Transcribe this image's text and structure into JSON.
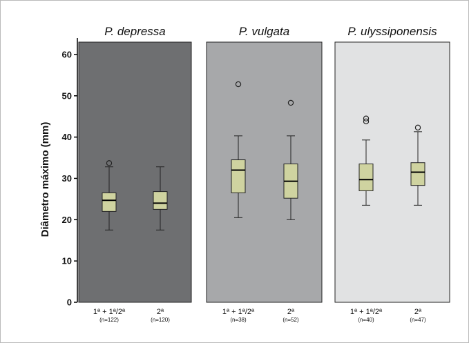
{
  "colors": {
    "box_fill": "#cfd3a0",
    "panel_backgrounds": [
      "#6e6f71",
      "#a7a8aa",
      "#e1e2e3"
    ]
  },
  "chart_data": {
    "type": "box",
    "ylabel": "Diâmetro máximo (mm)",
    "ylim": [
      0,
      63
    ],
    "yticks": [
      0,
      10,
      20,
      30,
      40,
      50,
      60
    ],
    "grid": false,
    "panels": [
      {
        "title": "P. depressa",
        "groups": [
          {
            "category": "1ª + 1ª/2ª",
            "n_label": "(n=122)",
            "whisker_low": 17.5,
            "q1": 22,
            "median": 24.7,
            "q3": 26.5,
            "whisker_high": 32.8,
            "outliers": [
              33.7
            ]
          },
          {
            "category": "2ª",
            "n_label": "(n=120)",
            "whisker_low": 17.5,
            "q1": 22.5,
            "median": 24,
            "q3": 26.8,
            "whisker_high": 32.8,
            "outliers": []
          }
        ]
      },
      {
        "title": "P. vulgata",
        "groups": [
          {
            "category": "1ª + 1ª/2ª",
            "n_label": "(n=38)",
            "whisker_low": 20.5,
            "q1": 26.5,
            "median": 32,
            "q3": 34.5,
            "whisker_high": 40.3,
            "outliers": [
              52.8
            ]
          },
          {
            "category": "2ª",
            "n_label": "(n=52)",
            "whisker_low": 20,
            "q1": 25.2,
            "median": 29.3,
            "q3": 33.5,
            "whisker_high": 40.3,
            "outliers": [
              48.3
            ]
          }
        ]
      },
      {
        "title": "P. ulyssiponensis",
        "groups": [
          {
            "category": "1ª + 1ª/2ª",
            "n_label": "(n=40)",
            "whisker_low": 23.5,
            "q1": 27,
            "median": 29.7,
            "q3": 33.5,
            "whisker_high": 39.3,
            "outliers": [
              43.8,
              44.5
            ]
          },
          {
            "category": "2ª",
            "n_label": "(n=47)",
            "whisker_low": 23.5,
            "q1": 28.3,
            "median": 31.5,
            "q3": 33.8,
            "whisker_high": 41.3,
            "outliers": [
              42.3
            ]
          }
        ]
      }
    ]
  }
}
